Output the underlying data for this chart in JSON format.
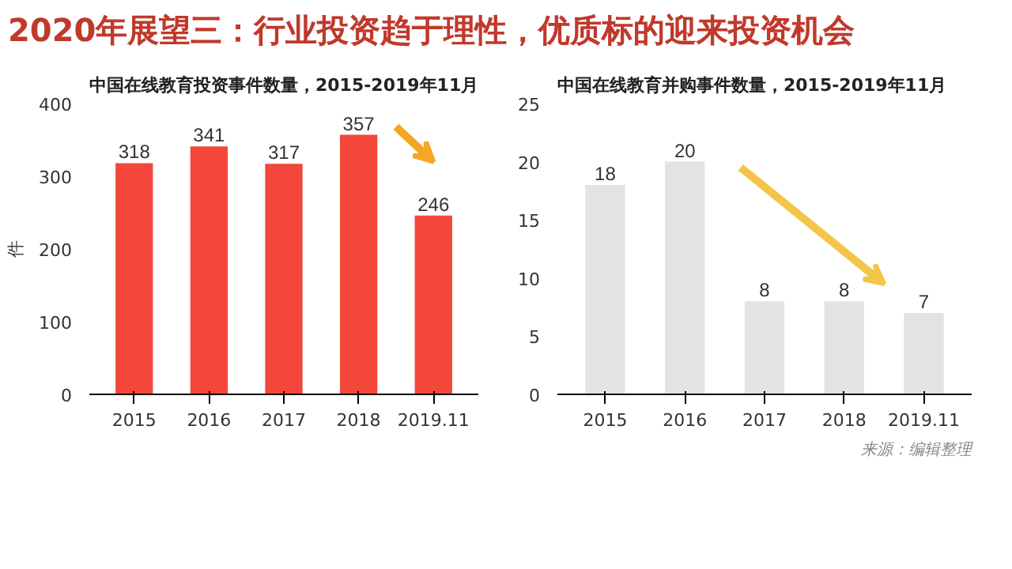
{
  "chart_data": [
    {
      "type": "bar",
      "title": "2020年展望三：行业投资趋于理性，优质标的迎来投资机会",
      "subtitle": "中国在线教育投资事件数量，2015-2019年11月",
      "ylabel": "件",
      "categories": [
        "2015",
        "2016",
        "2017",
        "2018",
        "2019.11"
      ],
      "values": [
        318,
        341,
        317,
        357,
        246
      ],
      "color": "#f2473a",
      "ylim": [
        0,
        400
      ],
      "yticks": [
        0,
        100,
        200,
        300,
        400
      ],
      "data_labels": true,
      "grid": false
    },
    {
      "type": "bar",
      "subtitle": "中国在线教育并购事件数量，2015-2019年11月",
      "categories": [
        "2015",
        "2016",
        "2017",
        "2018",
        "2019.11"
      ],
      "values": [
        18,
        20,
        8,
        8,
        7
      ],
      "color": "#e3e3e3",
      "ylim": [
        0,
        25
      ],
      "yticks": [
        0,
        5,
        10,
        15,
        20,
        25
      ],
      "data_labels": true,
      "grid": false,
      "annotations": [
        "来源：编辑整理"
      ]
    }
  ]
}
